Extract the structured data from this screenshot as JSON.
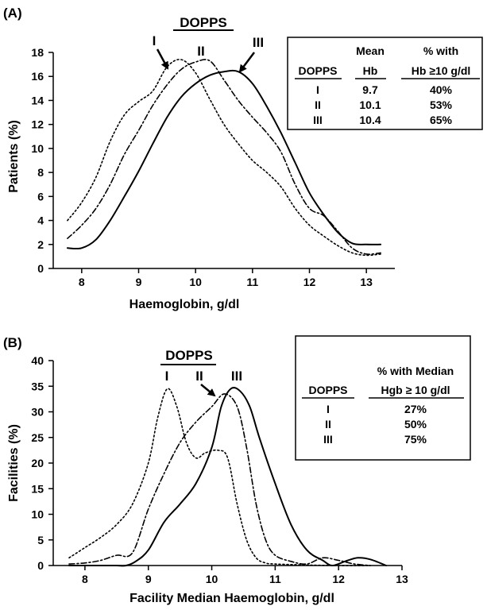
{
  "chart_data": [
    {
      "panel": "(A)",
      "type": "line",
      "title": "DOPPS",
      "xlabel": "Haemoglobin, g/dl",
      "ylabel": "Patients (%)",
      "xlim": [
        7.5,
        13.5
      ],
      "ylim": [
        0,
        18
      ],
      "x_ticks": [
        8,
        9,
        10,
        11,
        12,
        13
      ],
      "y_ticks": [
        0,
        2,
        4,
        6,
        8,
        10,
        12,
        14,
        16,
        18
      ],
      "grid": false,
      "series": [
        {
          "name": "I",
          "style": "dotted",
          "x": [
            7.75,
            8.0,
            8.25,
            8.5,
            8.75,
            9.0,
            9.25,
            9.5,
            9.75,
            10.0,
            10.25,
            10.5,
            10.75,
            11.0,
            11.25,
            11.5,
            11.75,
            12.0,
            12.25,
            12.5,
            12.75,
            13.0,
            13.25
          ],
          "y": [
            4.0,
            5.5,
            7.6,
            10.6,
            12.8,
            13.9,
            14.8,
            16.8,
            17.4,
            16.3,
            14.1,
            12.0,
            10.4,
            9.0,
            8.0,
            6.8,
            5.0,
            3.6,
            2.7,
            1.9,
            1.3,
            1.1,
            1.2
          ]
        },
        {
          "name": "II",
          "style": "dash-dot",
          "x": [
            7.75,
            8.0,
            8.25,
            8.5,
            8.75,
            9.0,
            9.25,
            9.5,
            9.75,
            10.0,
            10.25,
            10.5,
            10.75,
            11.0,
            11.25,
            11.5,
            11.75,
            12.0,
            12.25,
            12.5,
            12.75,
            13.0,
            13.25
          ],
          "y": [
            2.5,
            3.6,
            5.0,
            7.0,
            9.5,
            11.5,
            13.6,
            15.3,
            16.6,
            17.2,
            17.3,
            15.7,
            14.0,
            12.6,
            11.3,
            9.7,
            7.0,
            5.0,
            4.4,
            3.1,
            1.7,
            1.2,
            1.3
          ]
        },
        {
          "name": "III",
          "style": "solid",
          "x": [
            7.75,
            8.0,
            8.25,
            8.5,
            8.75,
            9.0,
            9.25,
            9.5,
            9.75,
            10.0,
            10.25,
            10.5,
            10.75,
            11.0,
            11.25,
            11.5,
            11.75,
            12.0,
            12.25,
            12.5,
            12.75,
            13.0,
            13.25
          ],
          "y": [
            1.7,
            1.7,
            2.4,
            4.0,
            6.0,
            8.1,
            10.4,
            12.6,
            14.3,
            15.4,
            16.1,
            16.4,
            16.4,
            15.4,
            13.5,
            11.3,
            8.8,
            6.3,
            4.5,
            3.0,
            2.1,
            2.0,
            2.0
          ]
        }
      ],
      "series_labels": [
        "I",
        "II",
        "III"
      ],
      "table": {
        "header_top": [
          "",
          "Mean",
          "% with"
        ],
        "header": [
          "DOPPS",
          "Hb",
          "Hb ≥10 g/dl"
        ],
        "rows": [
          [
            "I",
            "9.7",
            "40%"
          ],
          [
            "II",
            "10.1",
            "53%"
          ],
          [
            "III",
            "10.4",
            "65%"
          ]
        ]
      },
      "legend_position": "top-right"
    },
    {
      "panel": "(B)",
      "type": "line",
      "title": "DOPPS",
      "xlabel": "Facility Median Haemoglobin, g/dl",
      "ylabel": "Facilities (%)",
      "xlim": [
        7.5,
        13
      ],
      "ylim": [
        0,
        40
      ],
      "x_ticks": [
        8,
        9,
        10,
        11,
        12,
        13
      ],
      "y_ticks": [
        0,
        5,
        10,
        15,
        20,
        25,
        30,
        35,
        40
      ],
      "grid": false,
      "series": [
        {
          "name": "I",
          "style": "dotted",
          "x": [
            7.75,
            8.0,
            8.25,
            8.5,
            8.75,
            9.0,
            9.15,
            9.3,
            9.45,
            9.6,
            9.75,
            9.9,
            10.1,
            10.25,
            10.4,
            10.55,
            10.7,
            10.85,
            11.0,
            11.5,
            12.0,
            12.5
          ],
          "y": [
            1.5,
            3.5,
            5.5,
            8.0,
            12.0,
            20.0,
            29.0,
            34.5,
            31.0,
            24.0,
            21.0,
            22.0,
            22.5,
            21.0,
            12.0,
            5.0,
            1.5,
            0.5,
            0.3,
            0.1,
            0,
            0
          ]
        },
        {
          "name": "II",
          "style": "dash-dot",
          "x": [
            7.75,
            8.0,
            8.25,
            8.5,
            8.75,
            9.0,
            9.25,
            9.5,
            9.75,
            10.0,
            10.2,
            10.4,
            10.55,
            10.7,
            10.85,
            11.0,
            11.25,
            11.5,
            11.75,
            12.0,
            12.25,
            12.5
          ],
          "y": [
            0.3,
            0.5,
            1.0,
            2.0,
            2.5,
            11.0,
            18.0,
            24.0,
            28.0,
            31.0,
            33.5,
            31.0,
            23.0,
            12.0,
            5.0,
            2.0,
            0.8,
            0.3,
            1.5,
            1.0,
            0.3,
            0
          ]
        },
        {
          "name": "III",
          "style": "solid",
          "x": [
            7.75,
            8.0,
            8.25,
            8.5,
            8.65,
            8.8,
            9.0,
            9.25,
            9.5,
            9.75,
            10.0,
            10.15,
            10.3,
            10.45,
            10.6,
            10.75,
            11.0,
            11.25,
            11.5,
            11.75,
            11.9,
            12.1,
            12.3,
            12.5,
            12.75
          ],
          "y": [
            0,
            0,
            0,
            0,
            0,
            0.8,
            3.0,
            8.5,
            12.0,
            16.0,
            23.0,
            31.0,
            34.5,
            34.0,
            31.0,
            25.0,
            16.0,
            8.0,
            3.0,
            1.0,
            0,
            0.8,
            1.5,
            1.2,
            0
          ]
        }
      ],
      "series_labels": [
        "I",
        "II",
        "III"
      ],
      "table": {
        "header_top": [
          "",
          "% with Median"
        ],
        "header": [
          "DOPPS",
          "Hgb ≥ 10 g/dl"
        ],
        "rows": [
          [
            "I",
            "27%"
          ],
          [
            "II",
            "50%"
          ],
          [
            "III",
            "75%"
          ]
        ]
      },
      "legend_position": "top-right"
    }
  ]
}
